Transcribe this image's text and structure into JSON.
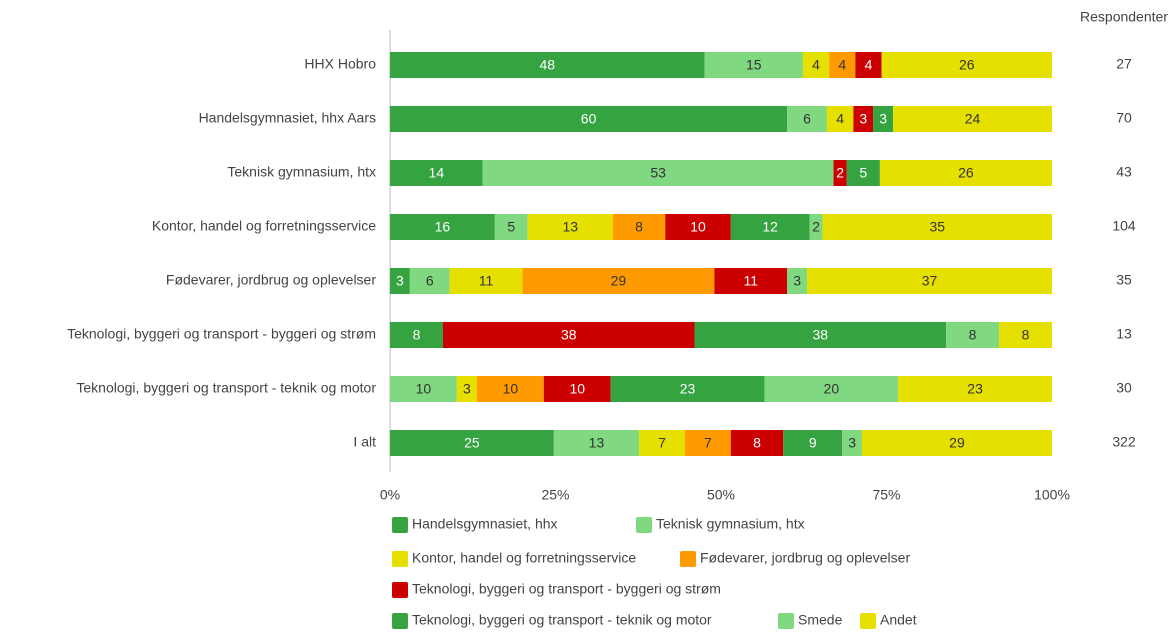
{
  "chart_data": {
    "type": "stacked_bar_100",
    "categories": [
      "HHX Hobro",
      "Handelsgymnasiet, hhx Aars",
      "Teknisk gymnasium, htx",
      "Kontor, handel og forretningsservice",
      "Fødevarer, jordbrug og oplevelser",
      "Teknologi, byggeri og transport - byggeri og strøm",
      "Teknologi, byggeri og transport - teknik og motor",
      "I alt"
    ],
    "series": [
      {
        "name": "Handelsgymnasiet, hhx",
        "color": "#34a340",
        "values": [
          48,
          60,
          14,
          16,
          3,
          8,
          null,
          25
        ]
      },
      {
        "name": "Teknisk gymnasium, htx",
        "color": "#80d880",
        "values": [
          15,
          6,
          53,
          5,
          6,
          null,
          10,
          13
        ]
      },
      {
        "name": "Kontor, handel og forretningsservice",
        "color": "#e6e000",
        "values": [
          4,
          4,
          null,
          13,
          11,
          null,
          3,
          7
        ]
      },
      {
        "name": "Fødevarer, jordbrug og oplevelser",
        "color": "#ff9a00",
        "values": [
          4,
          null,
          null,
          8,
          29,
          null,
          10,
          7
        ]
      },
      {
        "name": "Teknologi, byggeri og transport - byggeri og strøm",
        "color": "#cc0000",
        "values": [
          4,
          3,
          2,
          10,
          11,
          38,
          10,
          8
        ]
      },
      {
        "name": "Teknologi, byggeri og transport - teknik og motor",
        "color": "#34a340",
        "values": [
          null,
          3,
          5,
          12,
          null,
          38,
          23,
          9
        ]
      },
      {
        "name": "Smede",
        "color": "#80d880",
        "values": [
          null,
          null,
          null,
          2,
          3,
          8,
          20,
          3
        ]
      },
      {
        "name": "Andet",
        "color": "#e6e000",
        "values": [
          26,
          24,
          26,
          35,
          37,
          8,
          23,
          29
        ]
      }
    ],
    "xlim": [
      0,
      100
    ],
    "xticks": [
      {
        "value": 0,
        "label": "0%"
      },
      {
        "value": 25,
        "label": "25%"
      },
      {
        "value": 50,
        "label": "50%"
      },
      {
        "value": 75,
        "label": "75%"
      },
      {
        "value": 100,
        "label": "100%"
      }
    ],
    "respondents_title": "Respondenter",
    "respondents": [
      27,
      70,
      43,
      104,
      35,
      13,
      30,
      322
    ]
  }
}
